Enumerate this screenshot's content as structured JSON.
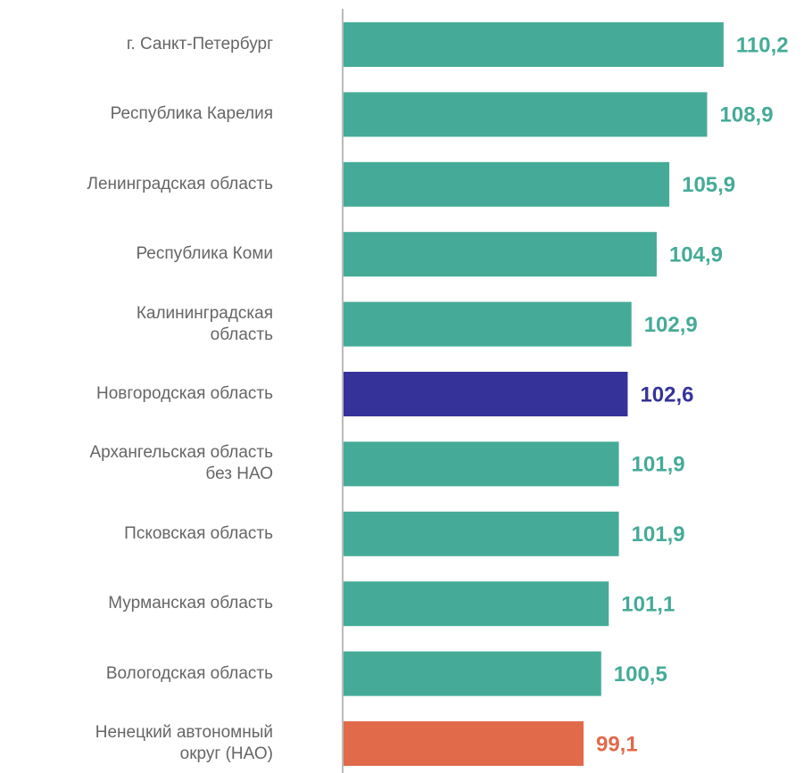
{
  "chart_data": {
    "type": "bar",
    "orientation": "horizontal",
    "categories": [
      "г. Санкт-Петербург",
      "Республика Карелия",
      "Ленинградская область",
      "Республика Коми",
      "Калининградская\nобласть",
      "Новгородская область",
      "Архангельская область\nбез НАО",
      "Псковская область",
      "Мурманская область",
      "Вологодская область",
      "Ненецкий автономный\nокруг (НАО)"
    ],
    "values": [
      110.2,
      108.9,
      105.9,
      104.9,
      102.9,
      102.6,
      101.9,
      101.9,
      101.1,
      100.5,
      99.1
    ],
    "value_labels": [
      "110,2",
      "108,9",
      "105,9",
      "104,9",
      "102,9",
      "102,6",
      "101,9",
      "101,9",
      "101,1",
      "100,5",
      "99,1"
    ],
    "colors": [
      "#45ab98",
      "#45ab98",
      "#45ab98",
      "#45ab98",
      "#45ab98",
      "#35339a",
      "#45ab98",
      "#45ab98",
      "#45ab98",
      "#45ab98",
      "#e06a4a"
    ],
    "xlim": [
      80,
      117
    ]
  }
}
